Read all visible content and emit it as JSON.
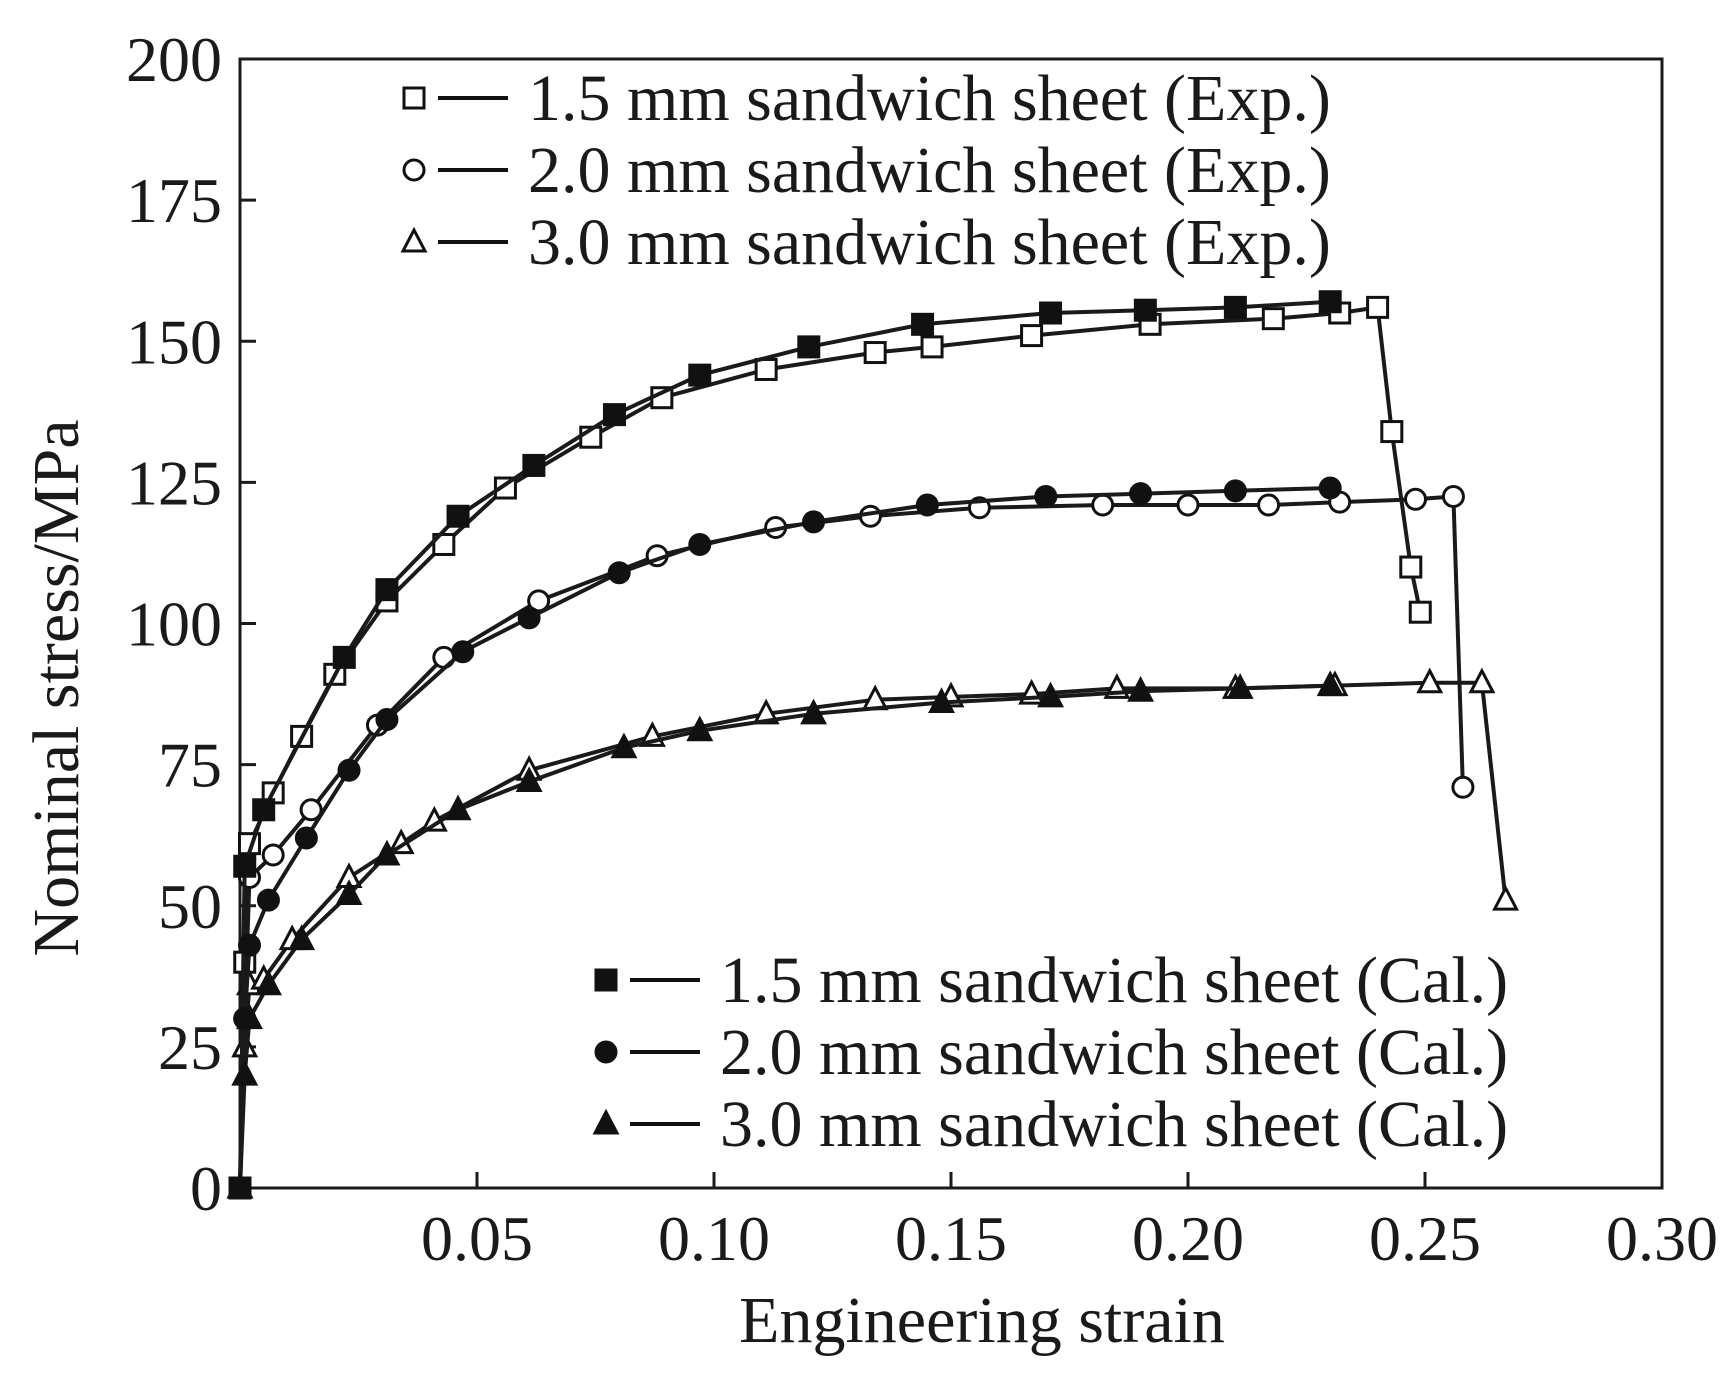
{
  "chart_data": {
    "type": "line",
    "xlabel": "Engineering strain",
    "ylabel": "Nominal stress/MPa",
    "xlim": [
      0,
      0.3
    ],
    "ylim": [
      0,
      200
    ],
    "xticks": [
      0,
      0.05,
      0.1,
      0.15,
      0.2,
      0.25,
      0.3
    ],
    "xtick_labels": [
      "0",
      "0.05",
      "0.10",
      "0.15",
      "0.20",
      "0.25",
      "0.30"
    ],
    "yticks": [
      0,
      25,
      50,
      75,
      100,
      125,
      150,
      175,
      200
    ],
    "ytick_labels": [
      "0",
      "25",
      "50",
      "75",
      "100",
      "125",
      "150",
      "175",
      "200"
    ],
    "grid": false,
    "legends": [
      {
        "placement": "top",
        "entries": [
          0,
          1,
          2
        ]
      },
      {
        "placement": "bottom-right",
        "entries": [
          3,
          4,
          5
        ]
      }
    ],
    "series": [
      {
        "name": "1.5 mm sandwich sheet (Exp.)",
        "marker": "square-open",
        "x": [
          0,
          0.001,
          0.002,
          0.007,
          0.013,
          0.02,
          0.031,
          0.043,
          0.056,
          0.074,
          0.089,
          0.111,
          0.134,
          0.146,
          0.167,
          0.192,
          0.218,
          0.232,
          0.24,
          0.243,
          0.247,
          0.249
        ],
        "y": [
          0,
          40,
          61,
          70,
          80,
          91,
          104,
          114,
          124,
          133,
          140,
          145,
          148,
          149,
          151,
          153,
          154,
          155,
          156,
          134,
          110,
          102
        ]
      },
      {
        "name": "2.0 mm sandwich sheet (Exp.)",
        "marker": "circle-open",
        "x": [
          0,
          0.001,
          0.002,
          0.007,
          0.015,
          0.029,
          0.043,
          0.063,
          0.088,
          0.113,
          0.133,
          0.156,
          0.182,
          0.2,
          0.217,
          0.232,
          0.248,
          0.256,
          0.258
        ],
        "y": [
          0,
          30,
          55,
          59,
          67,
          82,
          94,
          104,
          112,
          117,
          119,
          120.5,
          121,
          121,
          121,
          121.5,
          122,
          122.5,
          71
        ]
      },
      {
        "name": "3.0 mm sandwich sheet (Exp.)",
        "marker": "triangle-open",
        "x": [
          0,
          0.001,
          0.002,
          0.005,
          0.011,
          0.023,
          0.034,
          0.041,
          0.061,
          0.087,
          0.111,
          0.134,
          0.15,
          0.167,
          0.185,
          0.21,
          0.231,
          0.251,
          0.262,
          0.267
        ],
        "y": [
          0,
          25,
          36,
          37,
          44,
          55,
          61,
          65,
          74,
          80,
          84,
          86.5,
          87,
          87.5,
          88.5,
          88.5,
          89,
          89.5,
          89.5,
          51
        ]
      },
      {
        "name": "1.5 mm sandwich sheet (Cal.)",
        "marker": "square-filled",
        "x": [
          0,
          0.001,
          0.005,
          0.022,
          0.031,
          0.046,
          0.062,
          0.079,
          0.097,
          0.12,
          0.144,
          0.171,
          0.191,
          0.21,
          0.23
        ],
        "y": [
          0,
          57,
          67,
          94,
          106,
          119,
          128,
          137,
          144,
          149,
          153,
          155,
          155.5,
          156,
          157
        ]
      },
      {
        "name": "2.0 mm sandwich sheet (Cal.)",
        "marker": "circle-filled",
        "x": [
          0,
          0.001,
          0.002,
          0.006,
          0.014,
          0.023,
          0.031,
          0.047,
          0.061,
          0.08,
          0.097,
          0.121,
          0.145,
          0.17,
          0.19,
          0.21,
          0.23
        ],
        "y": [
          0,
          30,
          43,
          51,
          62,
          74,
          83,
          95,
          101,
          109,
          114,
          118,
          121,
          122.5,
          123,
          123.5,
          124
        ]
      },
      {
        "name": "3.0 mm sandwich sheet (Cal.)",
        "marker": "triangle-filled",
        "x": [
          0,
          0.001,
          0.002,
          0.006,
          0.013,
          0.023,
          0.031,
          0.046,
          0.061,
          0.081,
          0.097,
          0.121,
          0.148,
          0.171,
          0.19,
          0.211,
          0.23
        ],
        "y": [
          0,
          20,
          30,
          36,
          44,
          52,
          59,
          67,
          72,
          78,
          81,
          84,
          86,
          87,
          88,
          88.5,
          89
        ]
      }
    ]
  }
}
